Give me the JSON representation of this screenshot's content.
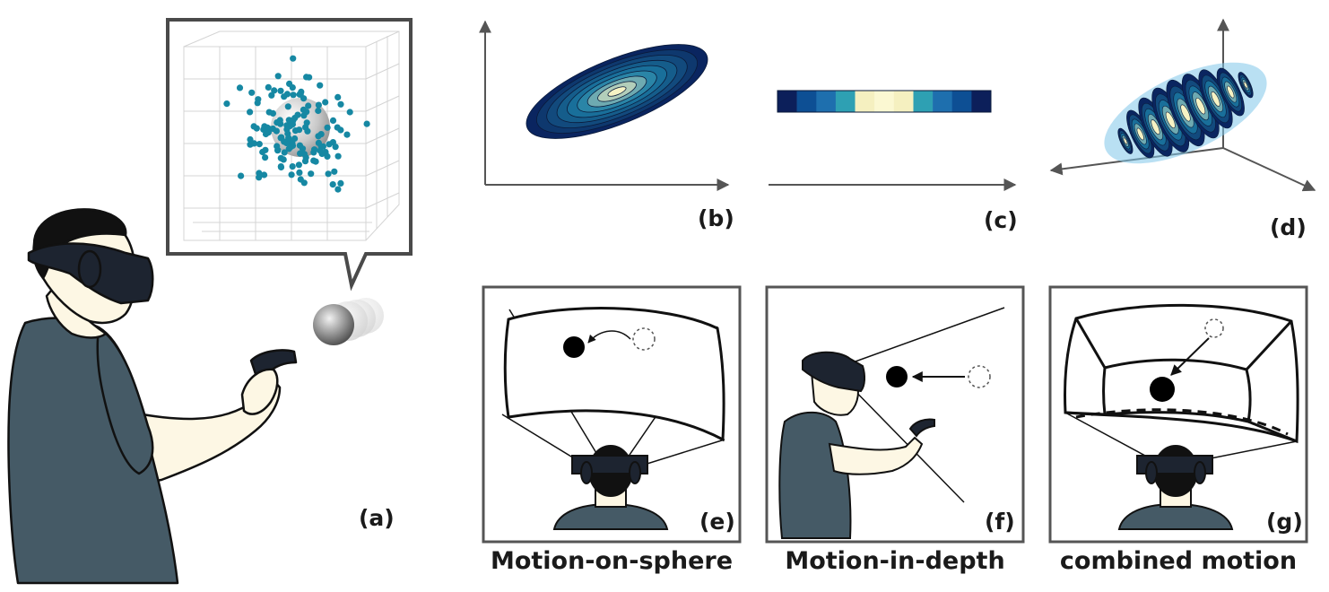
{
  "panels": {
    "a": {
      "label": "(a)"
    },
    "b": {
      "label": "(b)"
    },
    "c": {
      "label": "(c)"
    },
    "d": {
      "label": "(d)"
    },
    "e": {
      "label": "(e)",
      "caption": "Motion-on-sphere"
    },
    "f": {
      "label": "(f)",
      "caption": "Motion-in-depth"
    },
    "g": {
      "label": "(g)",
      "caption": "combined motion"
    }
  },
  "colors": {
    "point": "#1688a3",
    "contour_outer": "#0a2560",
    "contour_mid": "#1c7ea5",
    "contour_inner": "#f6f3c4",
    "skin": "#fdf7e4",
    "shirt": "#455a66",
    "headset": "#1d2430"
  },
  "colormap_strip": [
    "#0c1f5a",
    "#0d4f94",
    "#1e6fae",
    "#2ea0b3",
    "#f5f0c0",
    "#fbf8d2",
    "#f5f0c0",
    "#2ea0b3",
    "#1e6fae",
    "#0d4f94",
    "#0c1f5a"
  ]
}
